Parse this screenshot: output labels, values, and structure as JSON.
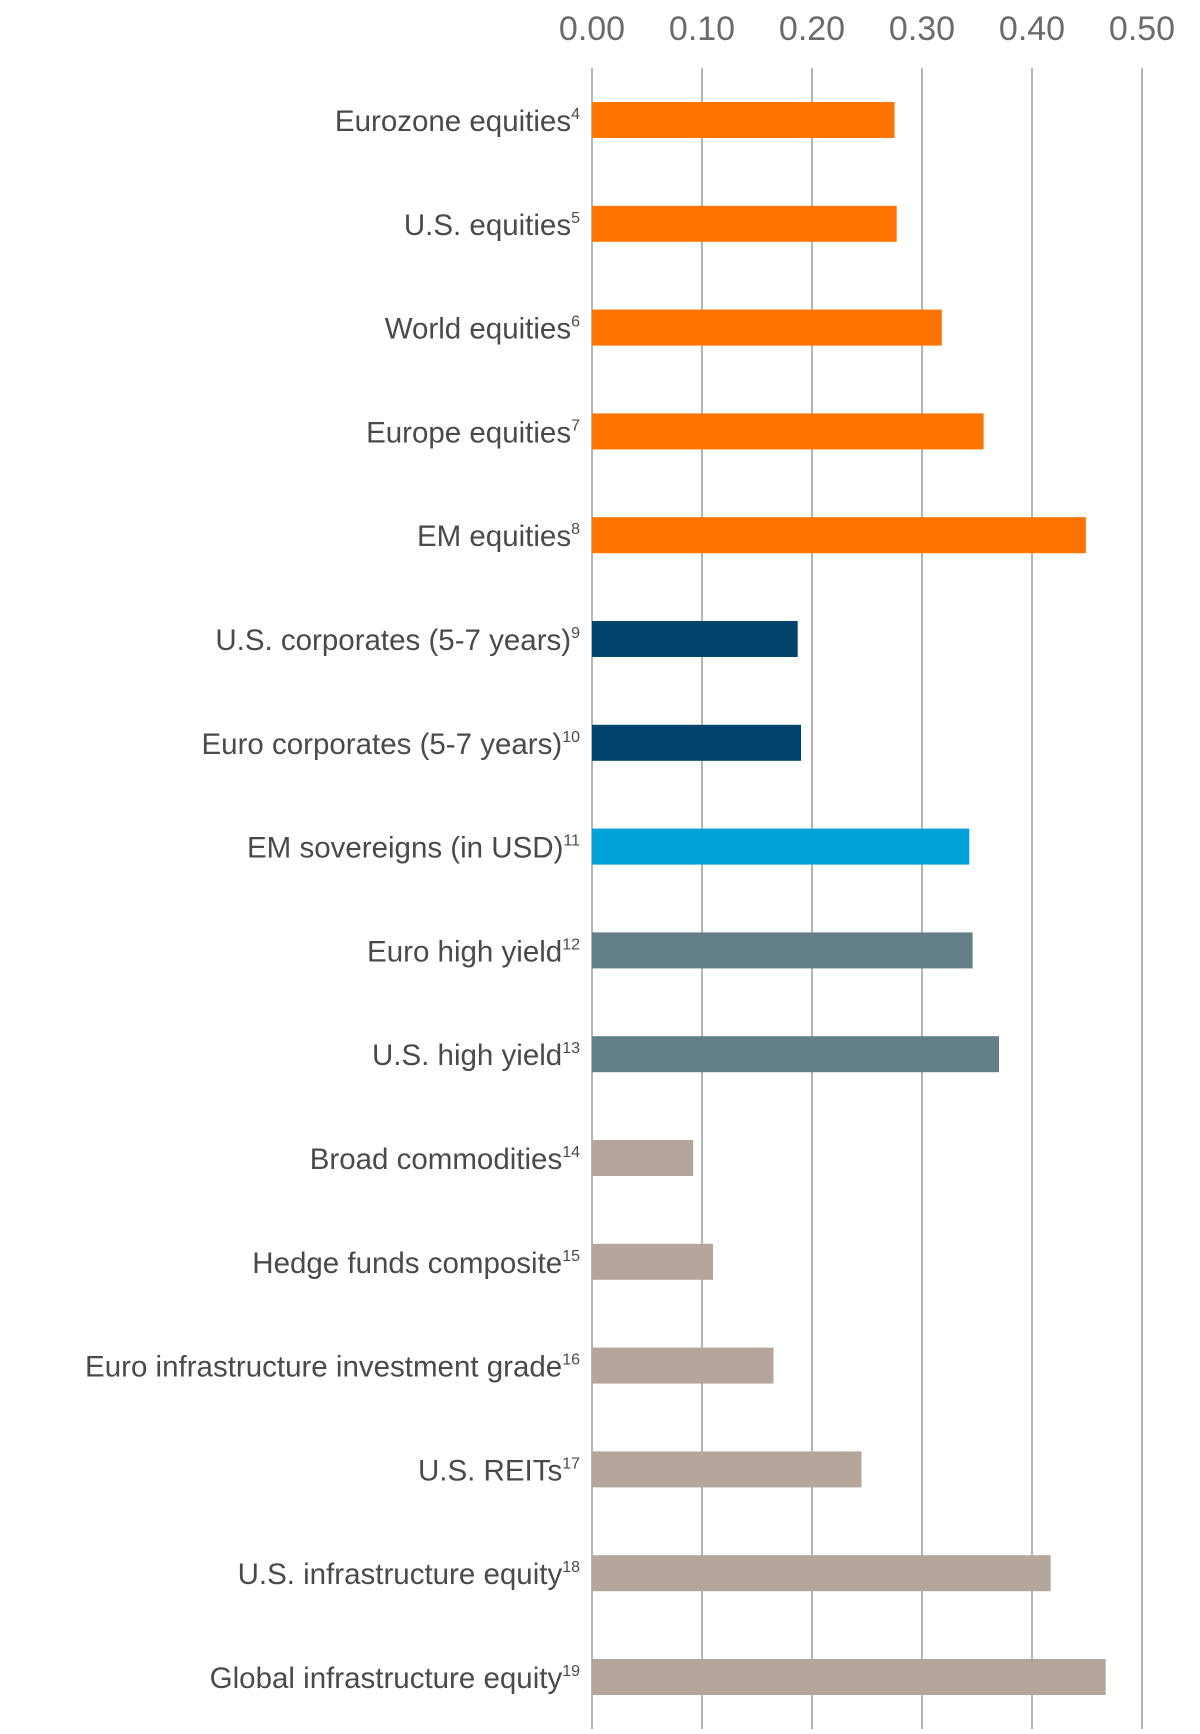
{
  "chart_data": {
    "type": "bar",
    "orientation": "horizontal",
    "title": "",
    "xlabel": "",
    "ylabel": "",
    "xlim": [
      0,
      0.5
    ],
    "x_ticks": [
      "0.00",
      "0.10",
      "0.20",
      "0.30",
      "0.40",
      "0.50"
    ],
    "x_axis_position": "top",
    "grid": true,
    "legend": "none",
    "categories": [
      {
        "label": "Eurozone equities",
        "note": "4"
      },
      {
        "label": "U.S. equities",
        "note": "5"
      },
      {
        "label": "World equities",
        "note": "6"
      },
      {
        "label": "Europe equities",
        "note": "7"
      },
      {
        "label": "EM equities",
        "note": "8"
      },
      {
        "label": "U.S. corporates (5-7 years)",
        "note": "9"
      },
      {
        "label": "Euro corporates (5-7 years)",
        "note": "10"
      },
      {
        "label": "EM sovereigns (in USD)",
        "note": "11"
      },
      {
        "label": "Euro high yield",
        "note": "12"
      },
      {
        "label": "U.S. high yield",
        "note": "13"
      },
      {
        "label": "Broad commodities",
        "note": "14"
      },
      {
        "label": "Hedge funds composite",
        "note": "15"
      },
      {
        "label": "Euro infrastructure investment grade",
        "note": "16"
      },
      {
        "label": "U.S. REITs",
        "note": "17"
      },
      {
        "label": "U.S. infrastructure equity",
        "note": "18"
      },
      {
        "label": "Global infrastructure equity",
        "note": "19"
      }
    ],
    "values": [
      0.275,
      0.277,
      0.318,
      0.356,
      0.449,
      0.187,
      0.19,
      0.343,
      0.346,
      0.37,
      0.092,
      0.11,
      0.165,
      0.245,
      0.417,
      0.467
    ],
    "bar_colors": [
      "#ff7300",
      "#ff7300",
      "#ff7300",
      "#ff7300",
      "#ff7300",
      "#00436b",
      "#00436b",
      "#00a2d9",
      "#627f85",
      "#627f85",
      "#b4a69b",
      "#b4a69b",
      "#b4a69b",
      "#b4a69b",
      "#b4a69b",
      "#b4a69b"
    ]
  }
}
